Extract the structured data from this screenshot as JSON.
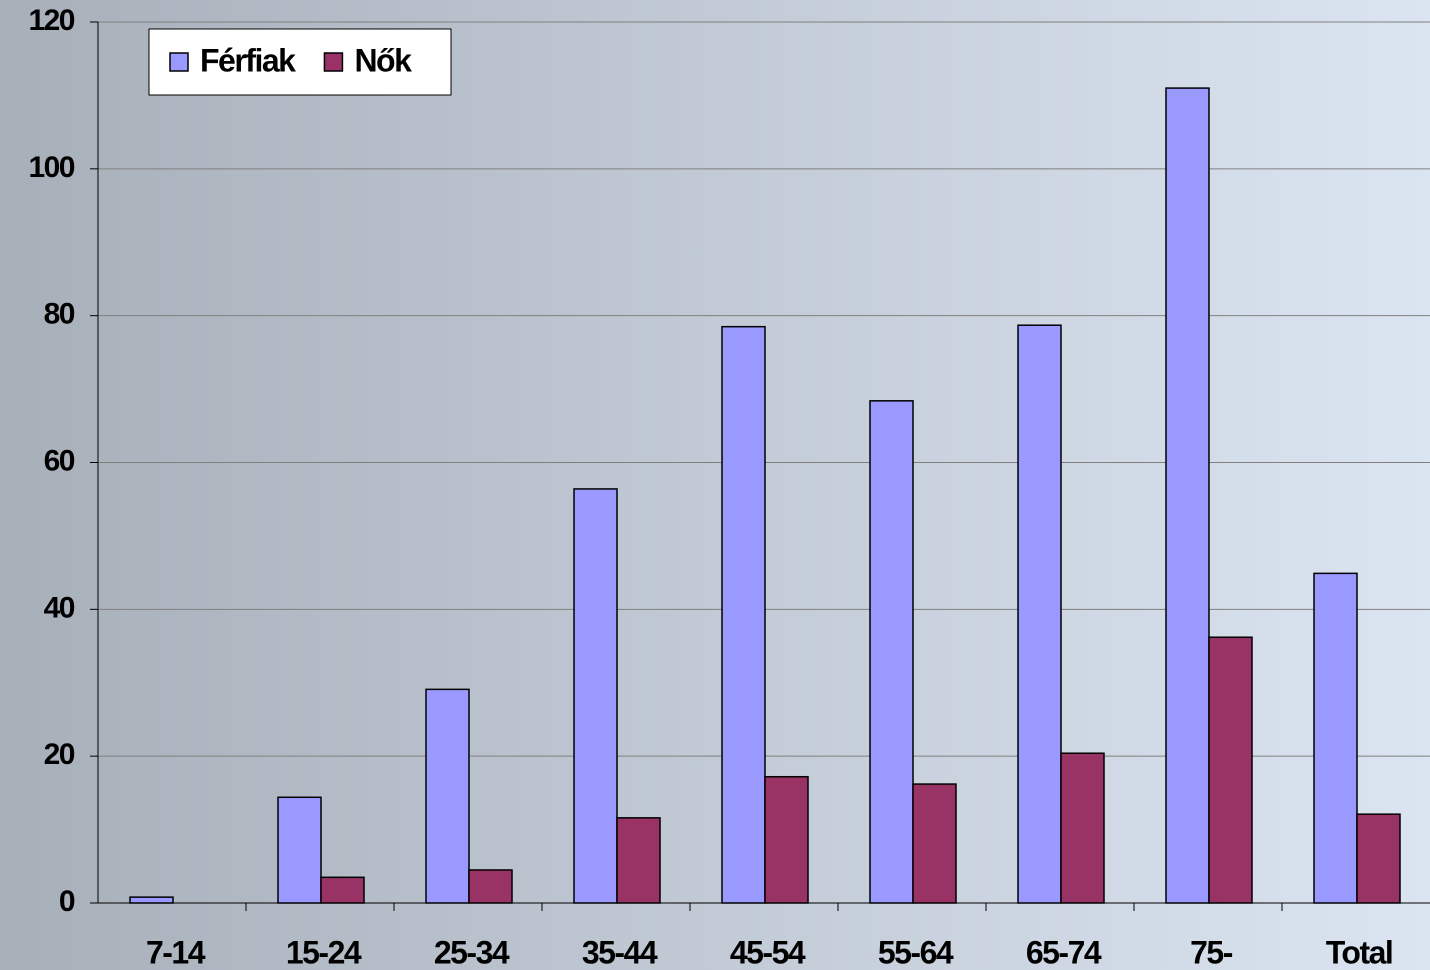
{
  "chart_data": {
    "type": "bar",
    "categories": [
      "7-14",
      "15-24",
      "25-34",
      "35-44",
      "45-54",
      "55-64",
      "65-74",
      "75-",
      "Total"
    ],
    "series": [
      {
        "name": "Férfiak",
        "color": "#9999ff",
        "values": [
          0.8,
          14.4,
          29.1,
          56.4,
          78.5,
          68.4,
          78.7,
          111.0,
          44.9
        ]
      },
      {
        "name": "Nők",
        "color": "#993366",
        "values": [
          0,
          3.5,
          4.5,
          11.6,
          17.2,
          16.2,
          20.4,
          36.2,
          12.1
        ]
      }
    ],
    "ylim": [
      0,
      120
    ],
    "yticks": [
      0,
      20,
      40,
      60,
      80,
      100,
      120
    ],
    "grid": true,
    "legend": "top-left"
  }
}
